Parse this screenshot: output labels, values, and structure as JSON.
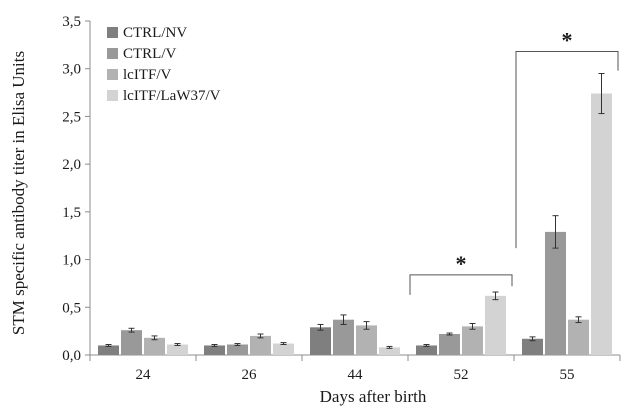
{
  "chart_data": {
    "type": "bar",
    "title": "",
    "xlabel": "Days after birth",
    "ylabel": "STM specific antibody titer in Elisa Units",
    "ylim": [
      0,
      3.5
    ],
    "yticks": [
      0,
      0.5,
      1,
      1.5,
      2,
      2.5,
      3,
      3.5
    ],
    "ytick_labels": [
      "0,0",
      "0,5",
      "1,0",
      "1,5",
      "2,0",
      "2,5",
      "3,0",
      "3,5"
    ],
    "categories": [
      "24",
      "26",
      "44",
      "52",
      "55"
    ],
    "grid": false,
    "legend_position": "top-left",
    "series": [
      {
        "name": "CTRL/NV",
        "color": "#7f7f7f",
        "values": [
          0.1,
          0.1,
          0.29,
          0.1,
          0.17
        ],
        "errors": [
          0.01,
          0.01,
          0.03,
          0.01,
          0.02
        ]
      },
      {
        "name": "CTRL/V",
        "color": "#999999",
        "values": [
          0.26,
          0.11,
          0.37,
          0.22,
          1.29
        ],
        "errors": [
          0.02,
          0.01,
          0.05,
          0.01,
          0.17
        ]
      },
      {
        "name": "lcITF/V",
        "color": "#b2b2b2",
        "values": [
          0.18,
          0.2,
          0.31,
          0.3,
          0.37
        ],
        "errors": [
          0.02,
          0.02,
          0.04,
          0.03,
          0.03
        ]
      },
      {
        "name": "lcITF/LaW37/V",
        "color": "#d3d3d3",
        "values": [
          0.11,
          0.12,
          0.08,
          0.62,
          2.74
        ],
        "errors": [
          0.01,
          0.01,
          0.01,
          0.04,
          0.21
        ]
      }
    ],
    "annotations": [
      {
        "text": "*",
        "category": "52",
        "from_series": 0,
        "to_series": 3,
        "y_bracket": 0.84,
        "y_left_end": 0.63,
        "y_right_end": 0.72
      },
      {
        "text": "*",
        "category": "55",
        "from_series": 0,
        "to_series": 3,
        "y_bracket": 3.18,
        "y_left_end": 1.12,
        "y_right_end": 2.98
      }
    ]
  }
}
